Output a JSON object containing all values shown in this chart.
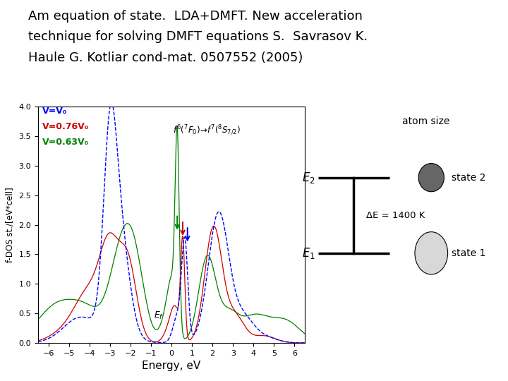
{
  "title_line1": "Am equation of state.  LDA+DMFT. New acceleration",
  "title_line2": "technique for solving DMFT equations S.  Savrasov K.",
  "title_line3": "Haule G. Kotliar cond-mat. 0507552 (2005)",
  "title_fontsize": 13,
  "bg_color": "#ffffff",
  "plot_xlabel": "Energy, eV",
  "plot_ylabel": "f-DOS st./[eV*cell]",
  "plot_xlim": [
    -6.5,
    6.5
  ],
  "plot_ylim": [
    0.0,
    4.0
  ],
  "plot_xticks": [
    -6,
    -5,
    -4,
    -3,
    -2,
    -1,
    0,
    1,
    2,
    3,
    4,
    5,
    6
  ],
  "plot_yticks": [
    0.0,
    0.5,
    1.0,
    1.5,
    2.0,
    2.5,
    3.0,
    3.5,
    4.0
  ],
  "legend_labels": [
    "V=V₀",
    "V=0.76V₀",
    "V=0.63V₀"
  ],
  "legend_colors": [
    "blue",
    "#cc0000",
    "green"
  ],
  "arrow_colors": [
    "green",
    "#cc0000",
    "blue"
  ],
  "right_panel_title": "atom size",
  "right_panel_delta": "ΔE = 1400 K",
  "right_panel_state2": "state 2",
  "right_panel_state1": "state 1",
  "ellipse2_color": "#666666",
  "ellipse1_color": "#d8d8d8"
}
